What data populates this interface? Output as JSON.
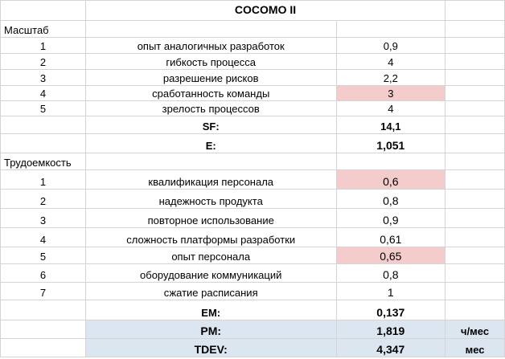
{
  "title": "COCOMO II",
  "scale_header": "Масштаб",
  "scale_factors": [
    {
      "num": "1",
      "name": "опыт аналогичных разработок",
      "value": "0,9",
      "highlight": false
    },
    {
      "num": "2",
      "name": "гибкость процесса",
      "value": "4",
      "highlight": false
    },
    {
      "num": "3",
      "name": "разрешение рисков",
      "value": "2,2",
      "highlight": false
    },
    {
      "num": "4",
      "name": "сработанность команды",
      "value": "3",
      "highlight": true
    },
    {
      "num": "5",
      "name": "зрелость процессов",
      "value": "4",
      "highlight": false
    }
  ],
  "sf": {
    "label": "SF:",
    "value": "14,1"
  },
  "e": {
    "label": "E:",
    "value": "1,051"
  },
  "effort_header": "Трудоемкость",
  "effort_multipliers": [
    {
      "num": "1",
      "name": "квалификация персонала",
      "value": "0,6",
      "highlight": true
    },
    {
      "num": "2",
      "name": "надежность продукта",
      "value": "0,8",
      "highlight": false
    },
    {
      "num": "3",
      "name": "повторное использование",
      "value": "0,9",
      "highlight": false
    },
    {
      "num": "4",
      "name": "сложность платформы разработки",
      "value": "0,61",
      "highlight": false
    },
    {
      "num": "5",
      "name": "опыт персонала",
      "value": "0,65",
      "highlight": true
    },
    {
      "num": "6",
      "name": "оборудование коммуникаций",
      "value": "0,8",
      "highlight": false
    },
    {
      "num": "7",
      "name": "сжатие расписания",
      "value": "1",
      "highlight": false
    }
  ],
  "em": {
    "label": "EM:",
    "value": "0,137"
  },
  "pm": {
    "label": "PM:",
    "value": "1,819",
    "unit": "ч/мес"
  },
  "tdev": {
    "label": "TDEV:",
    "value": "4,347",
    "unit": "мес"
  },
  "colors": {
    "highlight": "#f4cccc",
    "result_fill": "#dce6f1",
    "grid": "#d4d4d4"
  }
}
